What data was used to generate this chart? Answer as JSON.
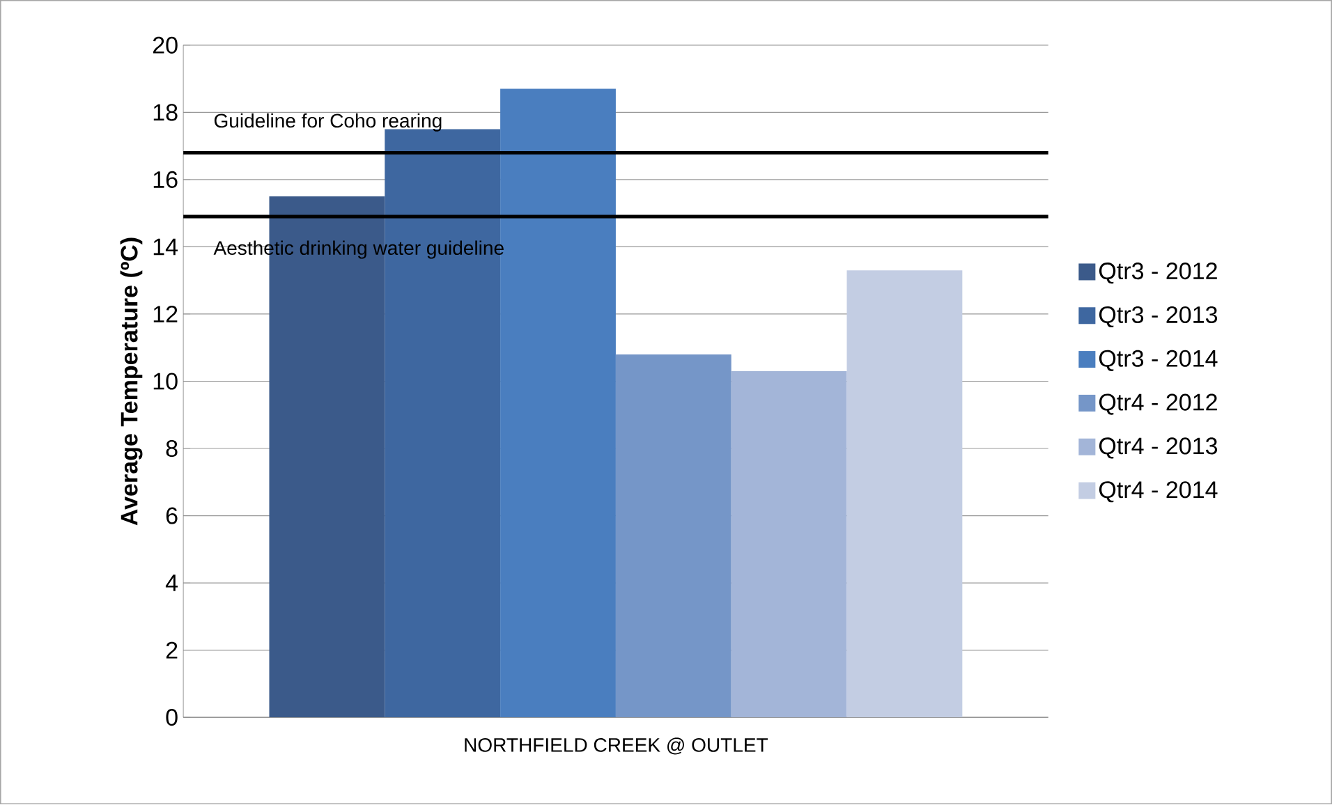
{
  "chart_data": {
    "type": "bar",
    "ylabel": "Average Temperature (ºC)",
    "categories": [
      "NORTHFIELD CREEK @ OUTLET"
    ],
    "series": [
      {
        "name": "Qtr3 - 2012",
        "color": "#3b5a8a",
        "values": [
          15.5
        ]
      },
      {
        "name": "Qtr3 - 2013",
        "color": "#3e67a0",
        "values": [
          17.5
        ]
      },
      {
        "name": "Qtr3 - 2014",
        "color": "#4a7ebf",
        "values": [
          18.7
        ]
      },
      {
        "name": "Qtr4 - 2012",
        "color": "#7596c8",
        "values": [
          10.8
        ]
      },
      {
        "name": "Qtr4 - 2013",
        "color": "#a3b5d8",
        "values": [
          10.3
        ]
      },
      {
        "name": "Qtr4 - 2014",
        "color": "#c3cde3",
        "values": [
          13.3
        ]
      }
    ],
    "ylim": [
      0,
      20
    ],
    "yticks": [
      0,
      2,
      4,
      6,
      8,
      10,
      12,
      14,
      16,
      18,
      20
    ],
    "grid": "y",
    "legend": "right",
    "ref_lines": [
      {
        "axis": "y",
        "value": 16.8,
        "label": "Guideline for Coho rearing",
        "color": "#000000"
      },
      {
        "axis": "y",
        "value": 14.9,
        "label": "Aesthetic drinking water guideline",
        "color": "#000000"
      }
    ]
  }
}
